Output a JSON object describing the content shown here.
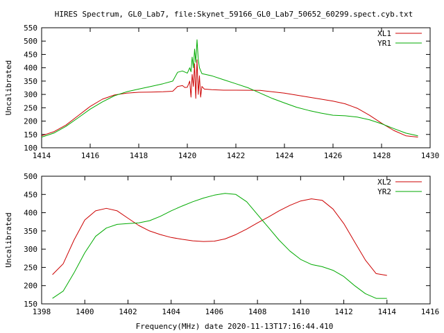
{
  "title": "HIRES Spectrum, GL0_Lab7, file:Skynet_59166_GL0_Lab7_50652_60299.spect.cyb.txt",
  "footer": "Frequency(MHz) date 2020-11-13T17:16:44.410",
  "colors": {
    "red": "#cc0000",
    "green": "#00aa00",
    "axis": "#000000",
    "background": "#ffffff"
  },
  "chart_data": [
    {
      "type": "line",
      "ylabel": "Uncalibrated",
      "xlim": [
        1414,
        1430
      ],
      "ylim": [
        100,
        550
      ],
      "xticks": [
        1414,
        1416,
        1418,
        1420,
        1422,
        1424,
        1426,
        1428,
        1430
      ],
      "yticks": [
        100,
        150,
        200,
        250,
        300,
        350,
        400,
        450,
        500,
        550
      ],
      "grid": false,
      "legend_position": "top-right",
      "series": [
        {
          "name": "XL1",
          "color": "#cc0000",
          "points": [
            [
              1414.0,
              145
            ],
            [
              1414.5,
              160
            ],
            [
              1415.0,
              185
            ],
            [
              1415.5,
              220
            ],
            [
              1416.0,
              255
            ],
            [
              1416.5,
              282
            ],
            [
              1417.0,
              298
            ],
            [
              1417.5,
              305
            ],
            [
              1418.0,
              308
            ],
            [
              1418.5,
              309
            ],
            [
              1419.0,
              310
            ],
            [
              1419.4,
              312
            ],
            [
              1419.6,
              330
            ],
            [
              1419.8,
              333
            ],
            [
              1419.9,
              326
            ],
            [
              1420.0,
              327
            ],
            [
              1420.1,
              350
            ],
            [
              1420.15,
              290
            ],
            [
              1420.2,
              375
            ],
            [
              1420.25,
              330
            ],
            [
              1420.3,
              415
            ],
            [
              1420.35,
              285
            ],
            [
              1420.4,
              430
            ],
            [
              1420.45,
              300
            ],
            [
              1420.5,
              370
            ],
            [
              1420.55,
              290
            ],
            [
              1420.6,
              330
            ],
            [
              1420.7,
              320
            ],
            [
              1421.0,
              318
            ],
            [
              1421.5,
              316
            ],
            [
              1422.0,
              316
            ],
            [
              1423.0,
              315
            ],
            [
              1424.0,
              305
            ],
            [
              1425.0,
              290
            ],
            [
              1426.0,
              275
            ],
            [
              1426.5,
              265
            ],
            [
              1427.0,
              248
            ],
            [
              1427.5,
              222
            ],
            [
              1428.0,
              192
            ],
            [
              1428.5,
              165
            ],
            [
              1429.0,
              145
            ],
            [
              1429.5,
              140
            ]
          ]
        },
        {
          "name": "YR1",
          "color": "#00aa00",
          "points": [
            [
              1414.0,
              140
            ],
            [
              1414.5,
              155
            ],
            [
              1415.0,
              180
            ],
            [
              1415.5,
              212
            ],
            [
              1416.0,
              245
            ],
            [
              1416.5,
              272
            ],
            [
              1417.0,
              295
            ],
            [
              1417.5,
              310
            ],
            [
              1418.0,
              320
            ],
            [
              1418.5,
              330
            ],
            [
              1419.0,
              340
            ],
            [
              1419.4,
              350
            ],
            [
              1419.6,
              383
            ],
            [
              1419.8,
              388
            ],
            [
              1420.0,
              380
            ],
            [
              1420.1,
              400
            ],
            [
              1420.15,
              385
            ],
            [
              1420.2,
              440
            ],
            [
              1420.25,
              400
            ],
            [
              1420.3,
              470
            ],
            [
              1420.35,
              420
            ],
            [
              1420.4,
              505
            ],
            [
              1420.45,
              430
            ],
            [
              1420.5,
              400
            ],
            [
              1420.6,
              378
            ],
            [
              1421.0,
              370
            ],
            [
              1421.5,
              355
            ],
            [
              1422.0,
              340
            ],
            [
              1422.5,
              325
            ],
            [
              1423.0,
              305
            ],
            [
              1423.5,
              285
            ],
            [
              1424.0,
              268
            ],
            [
              1424.5,
              252
            ],
            [
              1425.0,
              240
            ],
            [
              1425.5,
              230
            ],
            [
              1426.0,
              222
            ],
            [
              1426.5,
              220
            ],
            [
              1427.0,
              215
            ],
            [
              1427.5,
              205
            ],
            [
              1428.0,
              190
            ],
            [
              1428.5,
              172
            ],
            [
              1429.0,
              155
            ],
            [
              1429.5,
              145
            ]
          ]
        }
      ]
    },
    {
      "type": "line",
      "ylabel": "Uncalibrated",
      "xlim": [
        1398,
        1416
      ],
      "ylim": [
        150,
        500
      ],
      "xticks": [
        1398,
        1400,
        1402,
        1404,
        1406,
        1408,
        1410,
        1412,
        1414,
        1416
      ],
      "yticks": [
        150,
        200,
        250,
        300,
        350,
        400,
        450,
        500
      ],
      "grid": false,
      "legend_position": "top-right",
      "series": [
        {
          "name": "XL2",
          "color": "#cc0000",
          "points": [
            [
              1398.5,
              230
            ],
            [
              1399.0,
              260
            ],
            [
              1399.5,
              325
            ],
            [
              1400.0,
              380
            ],
            [
              1400.5,
              405
            ],
            [
              1401.0,
              412
            ],
            [
              1401.5,
              405
            ],
            [
              1402.0,
              385
            ],
            [
              1402.5,
              365
            ],
            [
              1403.0,
              350
            ],
            [
              1403.5,
              340
            ],
            [
              1404.0,
              332
            ],
            [
              1404.5,
              327
            ],
            [
              1405.0,
              323
            ],
            [
              1405.5,
              321
            ],
            [
              1406.0,
              322
            ],
            [
              1406.5,
              328
            ],
            [
              1407.0,
              340
            ],
            [
              1407.5,
              355
            ],
            [
              1408.0,
              372
            ],
            [
              1408.5,
              388
            ],
            [
              1409.0,
              405
            ],
            [
              1409.5,
              420
            ],
            [
              1410.0,
              432
            ],
            [
              1410.5,
              438
            ],
            [
              1411.0,
              434
            ],
            [
              1411.5,
              410
            ],
            [
              1412.0,
              370
            ],
            [
              1412.5,
              320
            ],
            [
              1413.0,
              270
            ],
            [
              1413.5,
              233
            ],
            [
              1414.0,
              228
            ]
          ]
        },
        {
          "name": "YR2",
          "color": "#00aa00",
          "points": [
            [
              1398.5,
              165
            ],
            [
              1399.0,
              185
            ],
            [
              1399.5,
              235
            ],
            [
              1400.0,
              290
            ],
            [
              1400.5,
              335
            ],
            [
              1401.0,
              358
            ],
            [
              1401.5,
              368
            ],
            [
              1402.0,
              370
            ],
            [
              1402.5,
              372
            ],
            [
              1403.0,
              378
            ],
            [
              1403.5,
              390
            ],
            [
              1404.0,
              405
            ],
            [
              1404.5,
              418
            ],
            [
              1405.0,
              430
            ],
            [
              1405.5,
              440
            ],
            [
              1406.0,
              448
            ],
            [
              1406.5,
              453
            ],
            [
              1407.0,
              450
            ],
            [
              1407.5,
              430
            ],
            [
              1408.0,
              395
            ],
            [
              1408.5,
              360
            ],
            [
              1409.0,
              325
            ],
            [
              1409.5,
              295
            ],
            [
              1410.0,
              272
            ],
            [
              1410.5,
              258
            ],
            [
              1411.0,
              252
            ],
            [
              1411.5,
              242
            ],
            [
              1412.0,
              225
            ],
            [
              1412.5,
              200
            ],
            [
              1413.0,
              178
            ],
            [
              1413.5,
              165
            ],
            [
              1414.0,
              165
            ]
          ]
        }
      ]
    }
  ]
}
